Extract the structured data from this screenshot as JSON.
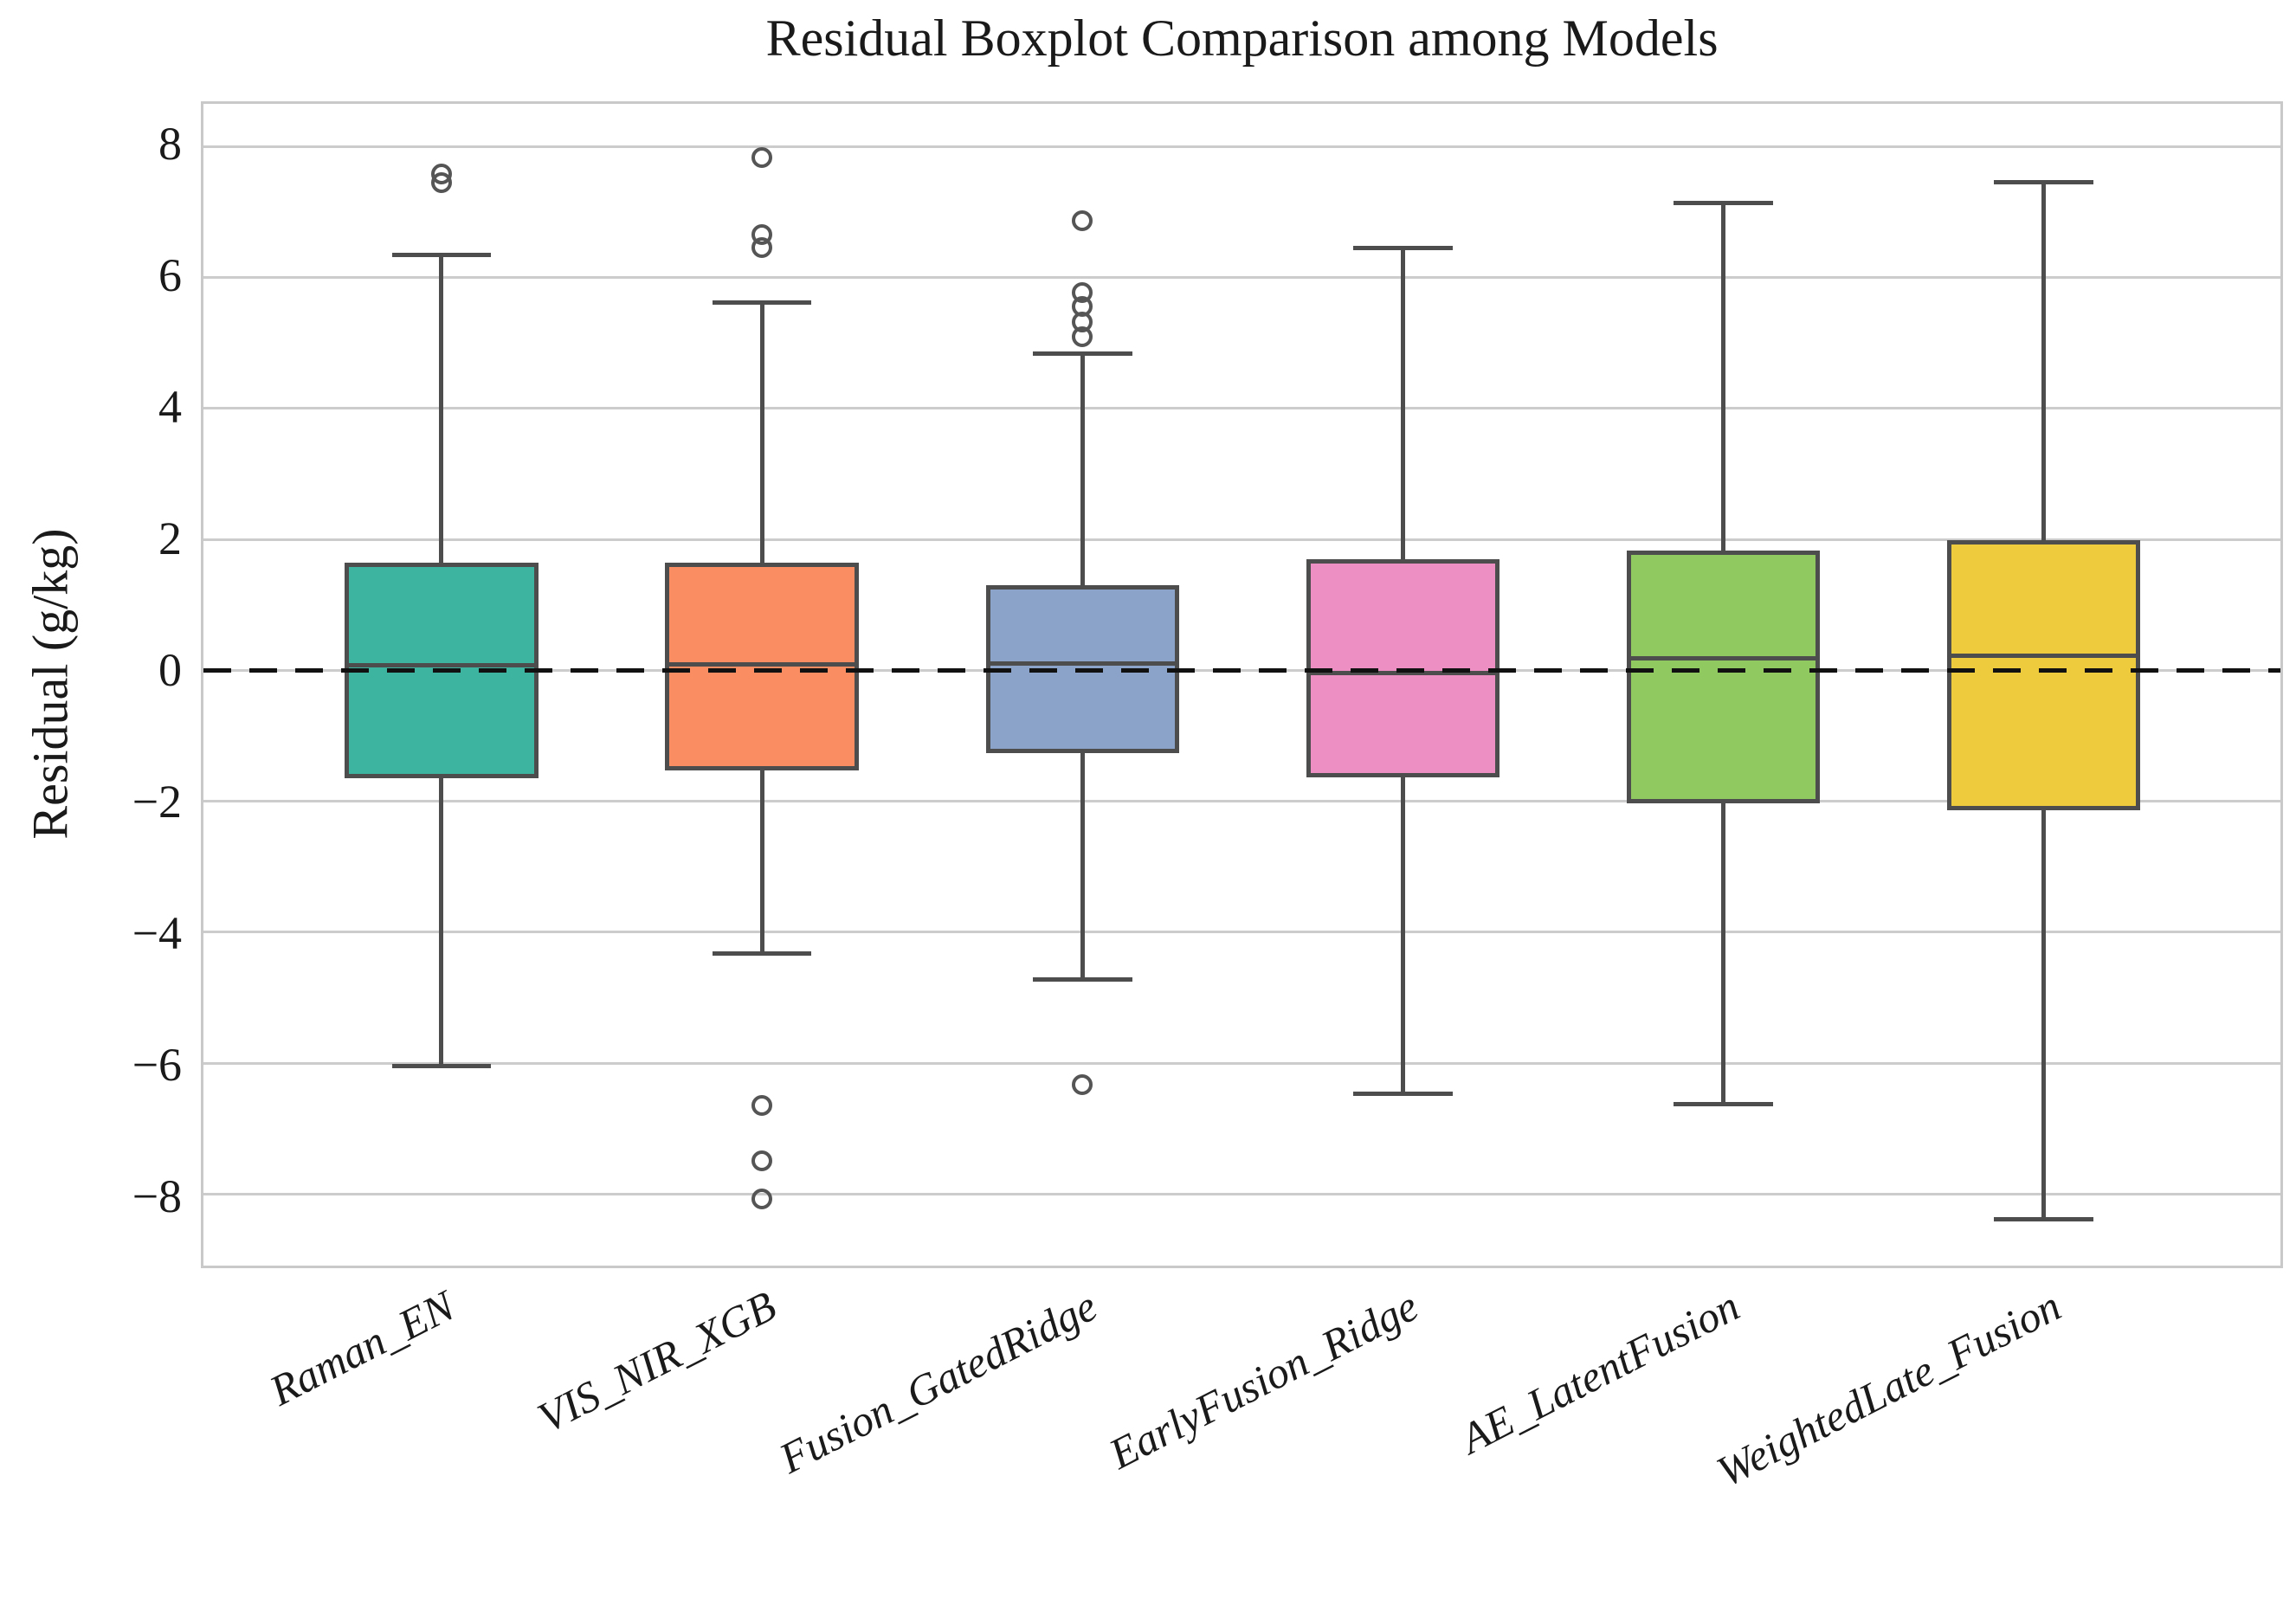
{
  "figure": {
    "title": "Residual Boxplot Comparison among Models",
    "ylabel": "Residual (g/kg)"
  },
  "chart_data": {
    "type": "box",
    "title": "Residual Boxplot Comparison among Models",
    "xlabel": "",
    "ylabel": "Residual (g/kg)",
    "ylim": [
      -9.09,
      8.65
    ],
    "yticks": [
      8,
      6,
      4,
      2,
      0,
      -2,
      -4,
      -6,
      -8
    ],
    "ytick_labels": [
      "8",
      "6",
      "4",
      "2",
      "0",
      "−2",
      "−4",
      "−6",
      "−8"
    ],
    "grid": true,
    "legend": false,
    "zero_line": {
      "y": 0,
      "style": "dashed",
      "color": "#111111"
    },
    "edge_color": "#4d4d4d",
    "grid_color": "#cccccc",
    "categories": [
      "Raman_EN",
      "VIS_NIR_XGB",
      "Fusion_GatedRidge",
      "EarlyFusion_Ridge",
      "AE_LatentFusion",
      "WeightedLate_Fusion"
    ],
    "series": [
      {
        "name": "Raman_EN",
        "color": "#3cb4a0",
        "whislo": -6.05,
        "q1": -1.65,
        "med": 0.08,
        "q3": 1.64,
        "whishi": 6.34,
        "fliers": [
          7.45,
          7.58
        ]
      },
      {
        "name": "VIS_NIR_XGB",
        "color": "#fa8e62",
        "whislo": -4.32,
        "q1": -1.53,
        "med": 0.09,
        "q3": 1.64,
        "whishi": 5.61,
        "fliers": [
          6.45,
          6.66,
          7.83,
          -6.64,
          -7.49,
          -8.07
        ]
      },
      {
        "name": "Fusion_GatedRidge",
        "color": "#8ba2c9",
        "whislo": -4.72,
        "q1": -1.27,
        "med": 0.1,
        "q3": 1.3,
        "whishi": 4.84,
        "fliers": [
          5.1,
          5.32,
          5.55,
          5.77,
          6.87,
          -6.33
        ]
      },
      {
        "name": "EarlyFusion_Ridge",
        "color": "#ee8fc4",
        "whislo": -6.47,
        "q1": -1.63,
        "med": -0.04,
        "q3": 1.7,
        "whishi": 6.45,
        "fliers": []
      },
      {
        "name": "AE_LatentFusion",
        "color": "#90c95f",
        "whislo": -6.63,
        "q1": -2.03,
        "med": 0.18,
        "q3": 1.83,
        "whishi": 7.14,
        "fliers": []
      },
      {
        "name": "WeightedLate_Fusion",
        "color": "#eecb3d",
        "whislo": -8.38,
        "q1": -2.14,
        "med": 0.22,
        "q3": 1.99,
        "whishi": 7.45,
        "fliers": []
      }
    ]
  }
}
